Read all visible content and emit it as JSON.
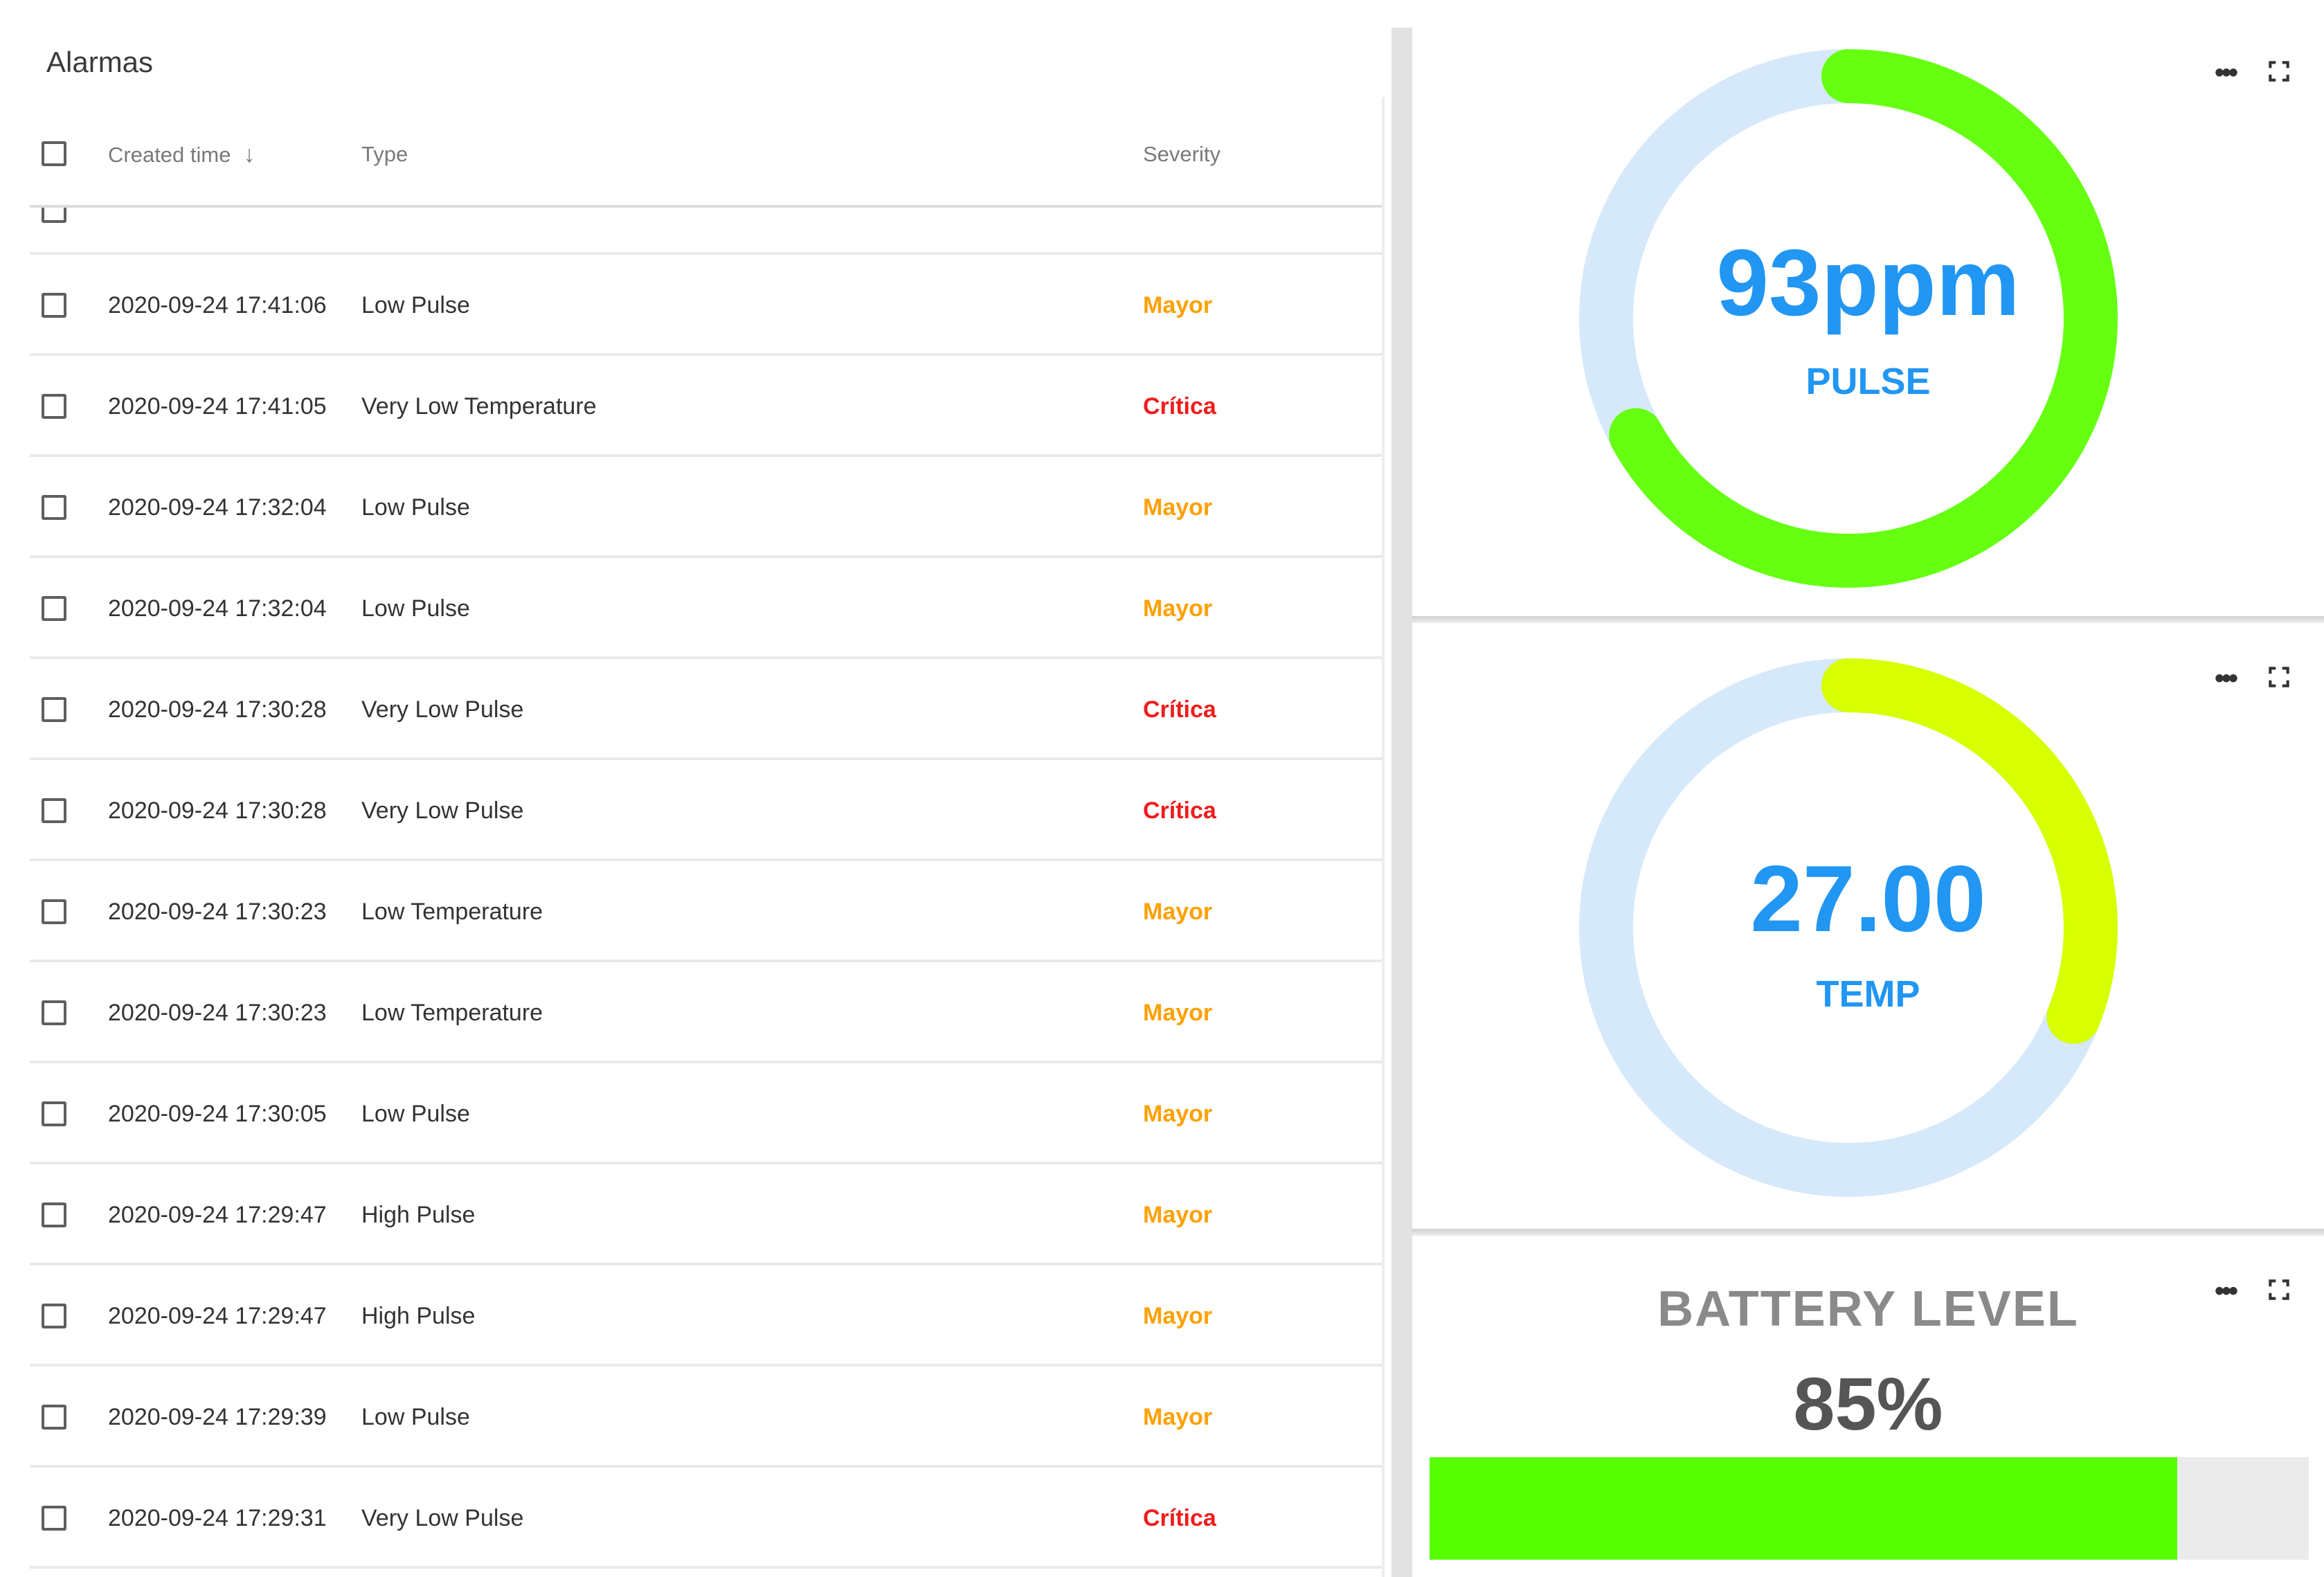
{
  "alarms": {
    "title": "Alarmas",
    "columns": {
      "created_time": "Created time",
      "type": "Type",
      "severity": "Severity"
    },
    "sort_icon": "arrow-down-icon",
    "rows": [
      {
        "time": "2020-09-24 17:41:06",
        "type": "Low Pulse",
        "severity": "Mayor",
        "level": "major"
      },
      {
        "time": "2020-09-24 17:41:05",
        "type": "Very Low Temperature",
        "severity": "Crítica",
        "level": "critical"
      },
      {
        "time": "2020-09-24 17:32:04",
        "type": "Low Pulse",
        "severity": "Mayor",
        "level": "major"
      },
      {
        "time": "2020-09-24 17:32:04",
        "type": "Low Pulse",
        "severity": "Mayor",
        "level": "major"
      },
      {
        "time": "2020-09-24 17:30:28",
        "type": "Very Low Pulse",
        "severity": "Crítica",
        "level": "critical"
      },
      {
        "time": "2020-09-24 17:30:28",
        "type": "Very Low Pulse",
        "severity": "Crítica",
        "level": "critical"
      },
      {
        "time": "2020-09-24 17:30:23",
        "type": "Low Temperature",
        "severity": "Mayor",
        "level": "major"
      },
      {
        "time": "2020-09-24 17:30:23",
        "type": "Low Temperature",
        "severity": "Mayor",
        "level": "major"
      },
      {
        "time": "2020-09-24 17:30:05",
        "type": "Low Pulse",
        "severity": "Mayor",
        "level": "major"
      },
      {
        "time": "2020-09-24 17:29:47",
        "type": "High Pulse",
        "severity": "Mayor",
        "level": "major"
      },
      {
        "time": "2020-09-24 17:29:47",
        "type": "High Pulse",
        "severity": "Mayor",
        "level": "major"
      },
      {
        "time": "2020-09-24 17:29:39",
        "type": "Low Pulse",
        "severity": "Mayor",
        "level": "major"
      },
      {
        "time": "2020-09-24 17:29:31",
        "type": "Very Low Pulse",
        "severity": "Crítica",
        "level": "critical"
      }
    ]
  },
  "colors": {
    "major": "#ffa000",
    "critical": "#f01c1c",
    "gauge_value": "#2196f3",
    "gauge_track": "#d6e9fb",
    "pulse_arc": "#66ff11",
    "temp_arc": "#d8ff00",
    "battery_fill": "#55ff00"
  },
  "widgets": {
    "pulse": {
      "value": "93ppm",
      "label": "PULSE",
      "arc_fraction": 0.67,
      "menu_icon": "more-horiz-icon",
      "fullscreen_icon": "fullscreen-icon"
    },
    "temp": {
      "value": "27.00",
      "label": "TEMP",
      "arc_fraction": 0.31,
      "menu_icon": "more-horiz-icon",
      "fullscreen_icon": "fullscreen-icon"
    },
    "battery": {
      "title": "BATTERY LEVEL",
      "value": "85%",
      "level": 0.85,
      "menu_icon": "more-horiz-icon",
      "fullscreen_icon": "fullscreen-icon"
    }
  }
}
